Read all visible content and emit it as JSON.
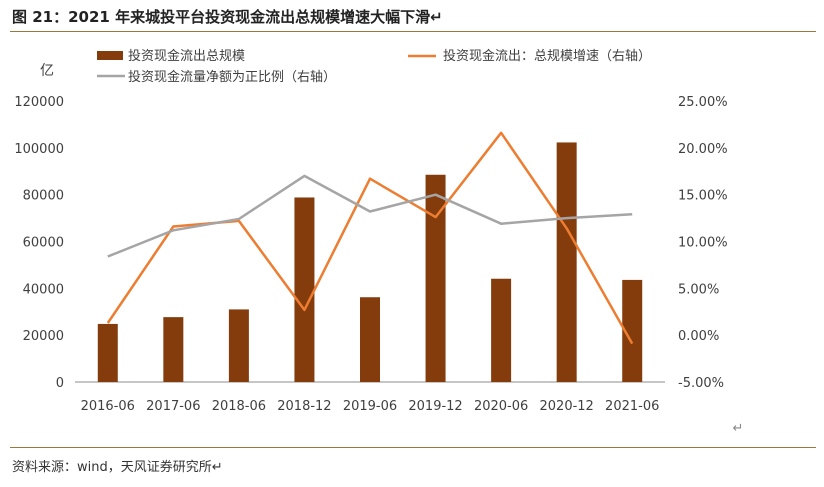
{
  "header": {
    "title": "图 21：2021 年来城投平台投资现金流出总规模增速大幅下滑↵"
  },
  "footer": {
    "source": "资料来源：wind，天风证券研究所↵"
  },
  "chart_data": {
    "type": "bar+line",
    "unit_label": "亿",
    "return_mark": "↵",
    "categories": [
      "2016-06",
      "2017-06",
      "2018-06",
      "2018-12",
      "2019-06",
      "2019-12",
      "2020-06",
      "2020-12",
      "2021-06"
    ],
    "y_left": {
      "range": [
        0,
        120000
      ],
      "ticks": [
        "0",
        "20000",
        "40000",
        "60000",
        "80000",
        "100000",
        "120000"
      ]
    },
    "y_right": {
      "range": [
        -5,
        25
      ],
      "ticks": [
        "-5.00%",
        "0.00%",
        "5.00%",
        "10.00%",
        "15.00%",
        "20.00%",
        "25.00%"
      ]
    },
    "legend_position": "top",
    "series": [
      {
        "name": "投资现金流出总规模",
        "type": "bar",
        "axis": "left",
        "color": "#843C0C",
        "values": [
          24800,
          27700,
          31000,
          78800,
          36200,
          88500,
          44100,
          102300,
          43600
        ]
      },
      {
        "name": "投资现金流出：总规模增速（右轴）",
        "type": "line",
        "axis": "right",
        "color": "#ED7D31",
        "values": [
          1.3,
          11.6,
          12.2,
          2.7,
          16.7,
          12.6,
          21.6,
          11.4,
          -0.9
        ]
      },
      {
        "name": "投资现金流量净额为正比例（右轴）",
        "type": "line",
        "axis": "right",
        "color": "#A5A5A5",
        "values": [
          8.4,
          11.2,
          12.4,
          17.0,
          13.2,
          15.0,
          11.9,
          12.5,
          12.9
        ]
      }
    ]
  }
}
